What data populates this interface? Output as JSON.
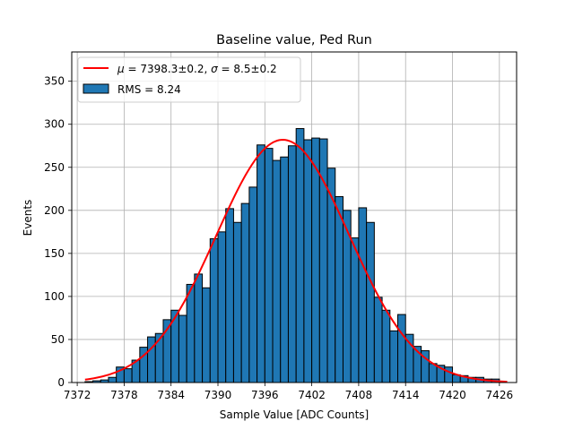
{
  "chart_data": {
    "type": "bar",
    "title": "Baseline value, Ped Run",
    "xlabel": "Sample Value [ADC Counts]",
    "ylabel": "Events",
    "xlim": [
      7371.3,
      7428.2
    ],
    "ylim": [
      0,
      384
    ],
    "grid": true,
    "legend_position": "top-left",
    "xticks": [
      7372,
      7378,
      7384,
      7390,
      7396,
      7402,
      7408,
      7414,
      7420,
      7426
    ],
    "yticks": [
      0,
      50,
      100,
      150,
      200,
      250,
      300,
      350
    ],
    "histogram": {
      "name": "RMS = 8.24",
      "bin_width": 1,
      "bin_starts": [
        7373,
        7374,
        7375,
        7376,
        7377,
        7378,
        7379,
        7380,
        7381,
        7382,
        7383,
        7384,
        7385,
        7386,
        7387,
        7388,
        7389,
        7390,
        7391,
        7392,
        7393,
        7394,
        7395,
        7396,
        7397,
        7398,
        7399,
        7400,
        7401,
        7402,
        7403,
        7404,
        7405,
        7406,
        7407,
        7408,
        7409,
        7410,
        7411,
        7412,
        7413,
        7414,
        7415,
        7416,
        7417,
        7418,
        7419,
        7420,
        7421,
        7422,
        7423,
        7424,
        7425
      ],
      "values": [
        1,
        2,
        3,
        6,
        18,
        16,
        26,
        41,
        53,
        57,
        73,
        84,
        78,
        114,
        126,
        110,
        167,
        175,
        202,
        186,
        208,
        227,
        276,
        272,
        258,
        262,
        275,
        295,
        282,
        284,
        283,
        249,
        216,
        200,
        168,
        203,
        186,
        99,
        84,
        60,
        79,
        56,
        42,
        37,
        22,
        20,
        18,
        9,
        8,
        6,
        6,
        4,
        4
      ],
      "face_color": "#1f77b4",
      "edge_color": "#000000"
    },
    "fit": {
      "name": "$\\mu=7398.3\\pm0.2$, $\\sigma=8.5\\pm0.2$",
      "label_mu": "μ",
      "label_mu_rest": " = 7398.3±0.2, ",
      "label_sigma": "σ",
      "label_sigma_rest": " = 8.5±0.2",
      "mu": 7398.3,
      "sigma": 8.5,
      "amplitude": 282,
      "x_range": [
        7373,
        7427
      ],
      "color": "#ff0000"
    }
  }
}
